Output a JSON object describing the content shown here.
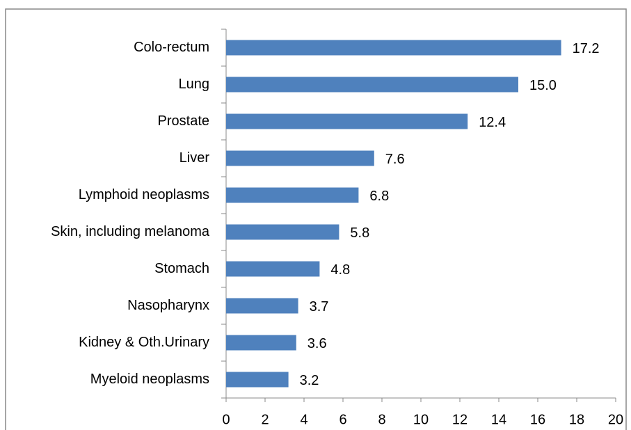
{
  "chart_data": {
    "type": "bar",
    "orientation": "horizontal",
    "categories": [
      "Colo-rectum",
      "Lung",
      "Prostate",
      "Liver",
      "Lymphoid neoplasms",
      "Skin, including melanoma",
      "Stomach",
      "Nasopharynx",
      "Kidney & Oth.Urinary",
      "Myeloid neoplasms"
    ],
    "values": [
      17.2,
      15.0,
      12.4,
      7.6,
      6.8,
      5.8,
      4.8,
      3.7,
      3.6,
      3.2
    ],
    "value_labels": [
      "17.2",
      "15.0",
      "12.4",
      "7.6",
      "6.8",
      "5.8",
      "4.8",
      "3.7",
      "3.6",
      "3.2"
    ],
    "color": "#4f81bd",
    "xlim": [
      0,
      20
    ],
    "xticks": [
      0,
      2,
      4,
      6,
      8,
      10,
      12,
      14,
      16,
      18,
      20
    ],
    "grid": false
  }
}
